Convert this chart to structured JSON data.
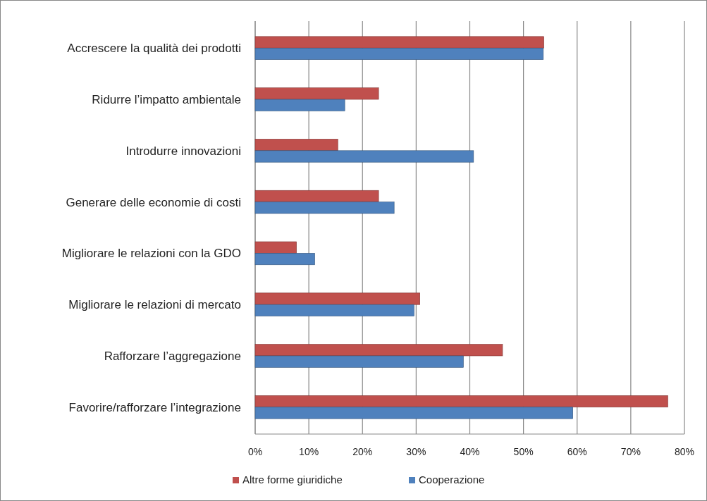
{
  "chart_data": {
    "type": "bar",
    "orientation": "horizontal",
    "categories": [
      "Accrescere la qualità dei prodotti",
      "Ridurre l’impatto ambientale",
      "Introdurre innovazioni",
      "Generare delle economie di costi",
      "Migliorare le relazioni con la GDO",
      "Migliorare le relazioni di mercato",
      "Rafforzare l’aggregazione",
      "Favorire/rafforzare l’integrazione"
    ],
    "series": [
      {
        "name": "Altre forme giuridiche",
        "color": "#c0504d",
        "values": [
          53.8,
          23.0,
          15.4,
          23.0,
          7.7,
          30.7,
          46.1,
          76.9
        ]
      },
      {
        "name": "Cooperazione",
        "color": "#4f81bd",
        "values": [
          53.7,
          16.7,
          40.7,
          25.9,
          11.1,
          29.6,
          38.8,
          59.2
        ]
      }
    ],
    "xlim": [
      0,
      80
    ],
    "xticks": [
      {
        "value": 0,
        "label": "0%"
      },
      {
        "value": 10,
        "label": "10%"
      },
      {
        "value": 20,
        "label": "20%"
      },
      {
        "value": 30,
        "label": "30%"
      },
      {
        "value": 40,
        "label": "40%"
      },
      {
        "value": 50,
        "label": "50%"
      },
      {
        "value": 60,
        "label": "60%"
      },
      {
        "value": 70,
        "label": "70%"
      },
      {
        "value": 80,
        "label": "80%"
      }
    ],
    "grid": "x",
    "legend": "bottom"
  }
}
